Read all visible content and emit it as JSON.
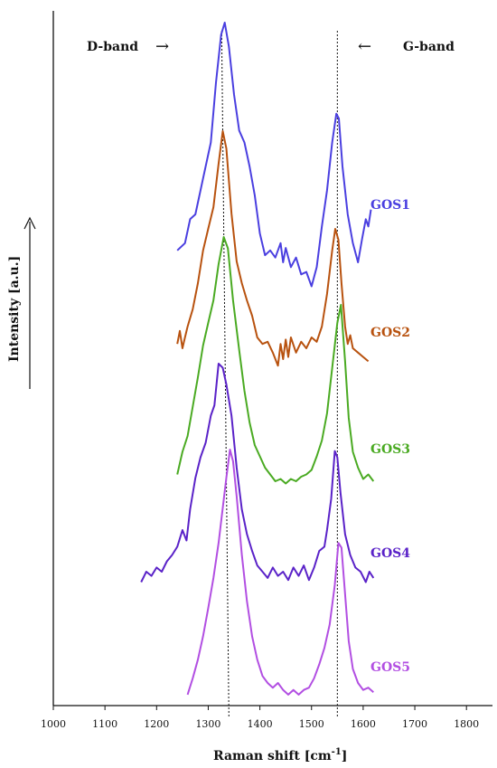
{
  "chart_data": {
    "type": "line",
    "title": "",
    "xlabel": "Raman shift [cm",
    "xlabel_superscript": "-1",
    "xlabel_close": "]",
    "ylabel": "Intensity [a.u.]",
    "xlim": [
      1000,
      1850
    ],
    "x_ticks": [
      1000,
      1100,
      1200,
      1300,
      1400,
      1500,
      1600,
      1700,
      1800
    ],
    "grid": false,
    "y_ticks_shown": false,
    "annotations": {
      "d_band": "D-band",
      "g_band": "G-band",
      "d_band_arrow": "→",
      "g_band_arrow": "←"
    },
    "reference_lines_x": [
      1340,
      1550
    ],
    "series": [
      {
        "name": "GOS1",
        "color": "#4a3fe0",
        "offset": 4,
        "points": [
          [
            1240,
            0.05
          ],
          [
            1255,
            0.08
          ],
          [
            1265,
            0.18
          ],
          [
            1275,
            0.2
          ],
          [
            1290,
            0.35
          ],
          [
            1305,
            0.5
          ],
          [
            1315,
            0.75
          ],
          [
            1325,
            0.95
          ],
          [
            1332,
            1.0
          ],
          [
            1340,
            0.9
          ],
          [
            1350,
            0.7
          ],
          [
            1360,
            0.55
          ],
          [
            1370,
            0.5
          ],
          [
            1380,
            0.4
          ],
          [
            1390,
            0.28
          ],
          [
            1400,
            0.12
          ],
          [
            1410,
            0.03
          ],
          [
            1420,
            0.05
          ],
          [
            1430,
            0.02
          ],
          [
            1440,
            0.08
          ],
          [
            1445,
            0.0
          ],
          [
            1450,
            0.06
          ],
          [
            1460,
            -0.02
          ],
          [
            1470,
            0.02
          ],
          [
            1480,
            -0.05
          ],
          [
            1490,
            -0.04
          ],
          [
            1500,
            -0.1
          ],
          [
            1510,
            -0.02
          ],
          [
            1520,
            0.15
          ],
          [
            1530,
            0.3
          ],
          [
            1540,
            0.5
          ],
          [
            1548,
            0.62
          ],
          [
            1553,
            0.6
          ],
          [
            1560,
            0.4
          ],
          [
            1570,
            0.2
          ],
          [
            1580,
            0.08
          ],
          [
            1590,
            0.0
          ],
          [
            1598,
            0.1
          ],
          [
            1605,
            0.18
          ],
          [
            1610,
            0.15
          ],
          [
            1615,
            0.22
          ]
        ]
      },
      {
        "name": "GOS2",
        "color": "#b8520f",
        "offset": 3,
        "points": [
          [
            1240,
            0.02
          ],
          [
            1245,
            0.08
          ],
          [
            1250,
            0.0
          ],
          [
            1255,
            0.05
          ],
          [
            1260,
            0.1
          ],
          [
            1270,
            0.18
          ],
          [
            1280,
            0.3
          ],
          [
            1290,
            0.45
          ],
          [
            1300,
            0.55
          ],
          [
            1310,
            0.65
          ],
          [
            1320,
            0.85
          ],
          [
            1328,
            1.0
          ],
          [
            1335,
            0.92
          ],
          [
            1345,
            0.62
          ],
          [
            1355,
            0.4
          ],
          [
            1365,
            0.3
          ],
          [
            1375,
            0.22
          ],
          [
            1385,
            0.15
          ],
          [
            1395,
            0.05
          ],
          [
            1405,
            0.02
          ],
          [
            1415,
            0.03
          ],
          [
            1425,
            -0.02
          ],
          [
            1435,
            -0.08
          ],
          [
            1440,
            0.02
          ],
          [
            1445,
            -0.05
          ],
          [
            1450,
            0.04
          ],
          [
            1455,
            -0.04
          ],
          [
            1460,
            0.05
          ],
          [
            1470,
            -0.02
          ],
          [
            1480,
            0.03
          ],
          [
            1490,
            0.0
          ],
          [
            1500,
            0.05
          ],
          [
            1510,
            0.03
          ],
          [
            1520,
            0.1
          ],
          [
            1530,
            0.25
          ],
          [
            1540,
            0.45
          ],
          [
            1546,
            0.55
          ],
          [
            1552,
            0.5
          ],
          [
            1558,
            0.3
          ],
          [
            1565,
            0.1
          ],
          [
            1570,
            0.02
          ],
          [
            1575,
            0.06
          ],
          [
            1580,
            0.0
          ],
          [
            1590,
            -0.02
          ],
          [
            1600,
            -0.04
          ],
          [
            1610,
            -0.06
          ]
        ]
      },
      {
        "name": "GOS3",
        "color": "#4aaa22",
        "offset": 2,
        "points": [
          [
            1240,
            -0.05
          ],
          [
            1250,
            0.05
          ],
          [
            1260,
            0.12
          ],
          [
            1270,
            0.25
          ],
          [
            1280,
            0.38
          ],
          [
            1290,
            0.52
          ],
          [
            1300,
            0.62
          ],
          [
            1310,
            0.72
          ],
          [
            1320,
            0.88
          ],
          [
            1330,
            1.0
          ],
          [
            1338,
            0.95
          ],
          [
            1348,
            0.72
          ],
          [
            1360,
            0.5
          ],
          [
            1370,
            0.32
          ],
          [
            1380,
            0.18
          ],
          [
            1390,
            0.08
          ],
          [
            1400,
            0.03
          ],
          [
            1410,
            -0.02
          ],
          [
            1420,
            -0.05
          ],
          [
            1430,
            -0.08
          ],
          [
            1440,
            -0.07
          ],
          [
            1450,
            -0.09
          ],
          [
            1460,
            -0.07
          ],
          [
            1470,
            -0.08
          ],
          [
            1480,
            -0.06
          ],
          [
            1490,
            -0.05
          ],
          [
            1500,
            -0.03
          ],
          [
            1510,
            0.03
          ],
          [
            1520,
            0.1
          ],
          [
            1530,
            0.22
          ],
          [
            1540,
            0.42
          ],
          [
            1550,
            0.62
          ],
          [
            1557,
            0.7
          ],
          [
            1565,
            0.45
          ],
          [
            1572,
            0.2
          ],
          [
            1580,
            0.05
          ],
          [
            1590,
            -0.02
          ],
          [
            1600,
            -0.07
          ],
          [
            1610,
            -0.05
          ],
          [
            1620,
            -0.08
          ]
        ]
      },
      {
        "name": "GOS4",
        "color": "#5a22c8",
        "offset": 1,
        "points": [
          [
            1170,
            -0.05
          ],
          [
            1180,
            0.0
          ],
          [
            1190,
            -0.02
          ],
          [
            1200,
            0.02
          ],
          [
            1210,
            0.0
          ],
          [
            1220,
            0.05
          ],
          [
            1230,
            0.08
          ],
          [
            1240,
            0.12
          ],
          [
            1250,
            0.2
          ],
          [
            1258,
            0.15
          ],
          [
            1265,
            0.3
          ],
          [
            1275,
            0.45
          ],
          [
            1285,
            0.55
          ],
          [
            1295,
            0.62
          ],
          [
            1305,
            0.75
          ],
          [
            1312,
            0.8
          ],
          [
            1320,
            1.0
          ],
          [
            1328,
            0.98
          ],
          [
            1335,
            0.9
          ],
          [
            1345,
            0.75
          ],
          [
            1355,
            0.5
          ],
          [
            1365,
            0.3
          ],
          [
            1375,
            0.18
          ],
          [
            1385,
            0.1
          ],
          [
            1395,
            0.03
          ],
          [
            1405,
            0.0
          ],
          [
            1415,
            -0.03
          ],
          [
            1425,
            0.02
          ],
          [
            1435,
            -0.02
          ],
          [
            1445,
            0.0
          ],
          [
            1455,
            -0.04
          ],
          [
            1465,
            0.02
          ],
          [
            1475,
            -0.02
          ],
          [
            1485,
            0.03
          ],
          [
            1495,
            -0.04
          ],
          [
            1505,
            0.02
          ],
          [
            1515,
            0.1
          ],
          [
            1525,
            0.12
          ],
          [
            1530,
            0.2
          ],
          [
            1538,
            0.35
          ],
          [
            1545,
            0.58
          ],
          [
            1550,
            0.55
          ],
          [
            1556,
            0.38
          ],
          [
            1565,
            0.18
          ],
          [
            1575,
            0.08
          ],
          [
            1585,
            0.02
          ],
          [
            1595,
            0.0
          ],
          [
            1605,
            -0.05
          ],
          [
            1612,
            0.0
          ],
          [
            1620,
            -0.03
          ]
        ]
      },
      {
        "name": "GOS5",
        "color": "#b24fe2",
        "offset": 0,
        "points": [
          [
            1260,
            -0.05
          ],
          [
            1270,
            0.02
          ],
          [
            1280,
            0.1
          ],
          [
            1290,
            0.2
          ],
          [
            1300,
            0.32
          ],
          [
            1310,
            0.45
          ],
          [
            1320,
            0.6
          ],
          [
            1328,
            0.75
          ],
          [
            1335,
            0.88
          ],
          [
            1342,
            1.0
          ],
          [
            1348,
            0.95
          ],
          [
            1355,
            0.8
          ],
          [
            1365,
            0.55
          ],
          [
            1375,
            0.35
          ],
          [
            1385,
            0.2
          ],
          [
            1395,
            0.1
          ],
          [
            1405,
            0.03
          ],
          [
            1415,
            0.0
          ],
          [
            1425,
            -0.02
          ],
          [
            1435,
            0.0
          ],
          [
            1445,
            -0.03
          ],
          [
            1455,
            -0.05
          ],
          [
            1465,
            -0.03
          ],
          [
            1475,
            -0.05
          ],
          [
            1485,
            -0.03
          ],
          [
            1495,
            -0.02
          ],
          [
            1505,
            0.02
          ],
          [
            1515,
            0.08
          ],
          [
            1525,
            0.15
          ],
          [
            1535,
            0.25
          ],
          [
            1545,
            0.42
          ],
          [
            1552,
            0.6
          ],
          [
            1558,
            0.58
          ],
          [
            1565,
            0.38
          ],
          [
            1572,
            0.18
          ],
          [
            1580,
            0.06
          ],
          [
            1590,
            0.0
          ],
          [
            1600,
            -0.03
          ],
          [
            1610,
            -0.02
          ],
          [
            1620,
            -0.04
          ]
        ]
      }
    ]
  }
}
